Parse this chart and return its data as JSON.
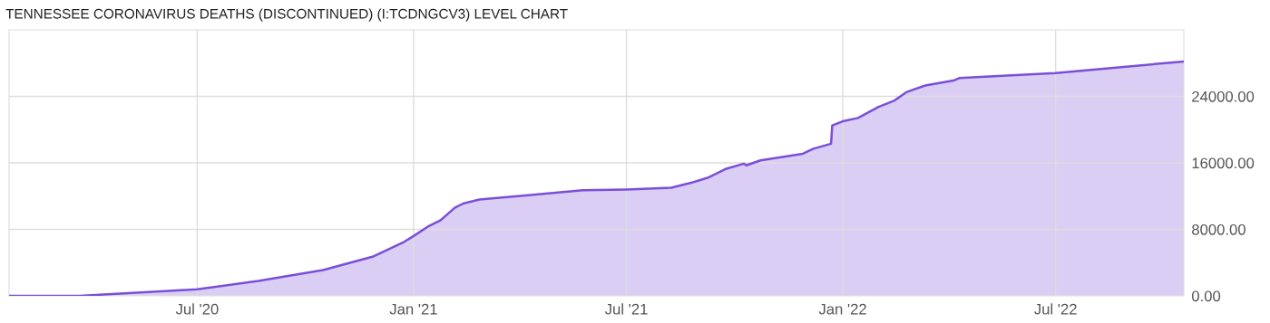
{
  "chart_data": {
    "type": "area",
    "title": "TENNESSEE CORONAVIRUS DEATHS (DISCONTINUED) (I:TCDNGCV3) LEVEL CHART",
    "x": [
      "2020-01-23",
      "2020-03-23",
      "2020-07-01",
      "2020-08-22",
      "2020-10-16",
      "2020-11-27",
      "2020-12-24",
      "2021-01-01",
      "2021-01-14",
      "2021-01-24",
      "2021-02-05",
      "2021-02-12",
      "2021-02-26",
      "2021-03-31",
      "2021-05-25",
      "2021-07-01",
      "2021-08-08",
      "2021-08-25",
      "2021-09-08",
      "2021-09-24",
      "2021-10-09",
      "2021-10-11",
      "2021-10-23",
      "2021-11-28",
      "2021-12-07",
      "2021-12-22",
      "2021-12-23",
      "2022-01-01",
      "2022-01-14",
      "2022-01-31",
      "2022-02-14",
      "2022-02-24",
      "2022-03-12",
      "2022-04-05",
      "2022-04-10",
      "2022-07-01",
      "2022-10-18"
    ],
    "series": [
      {
        "color": "#7a4fd8",
        "values": [
          0,
          0,
          800,
          1800,
          3100,
          4700,
          6500,
          7200,
          8400,
          9100,
          10600,
          11100,
          11600,
          12000,
          12700,
          12800,
          13000,
          13600,
          14200,
          15300,
          15900,
          15700,
          16300,
          17100,
          17700,
          18300,
          20500,
          21000,
          21400,
          22700,
          23500,
          24500,
          25300,
          25900,
          26200,
          26800,
          28200
        ]
      }
    ],
    "xlim": [
      "2020-01-23",
      "2022-10-18"
    ],
    "xticks": [
      {
        "value": "2020-07-01",
        "label": "Jul '20"
      },
      {
        "value": "2021-01-01",
        "label": "Jan '21"
      },
      {
        "value": "2021-07-01",
        "label": "Jul '21"
      },
      {
        "value": "2022-01-01",
        "label": "Jan '22"
      },
      {
        "value": "2022-07-01",
        "label": "Jul '22"
      }
    ],
    "ylim": [
      0,
      32000
    ],
    "yticks": [
      {
        "value": 0,
        "label": "0.00"
      },
      {
        "value": 8000,
        "label": "8000.00"
      },
      {
        "value": 16000,
        "label": "16000.00"
      },
      {
        "value": 24000,
        "label": "24000.00"
      }
    ],
    "grid": true
  }
}
